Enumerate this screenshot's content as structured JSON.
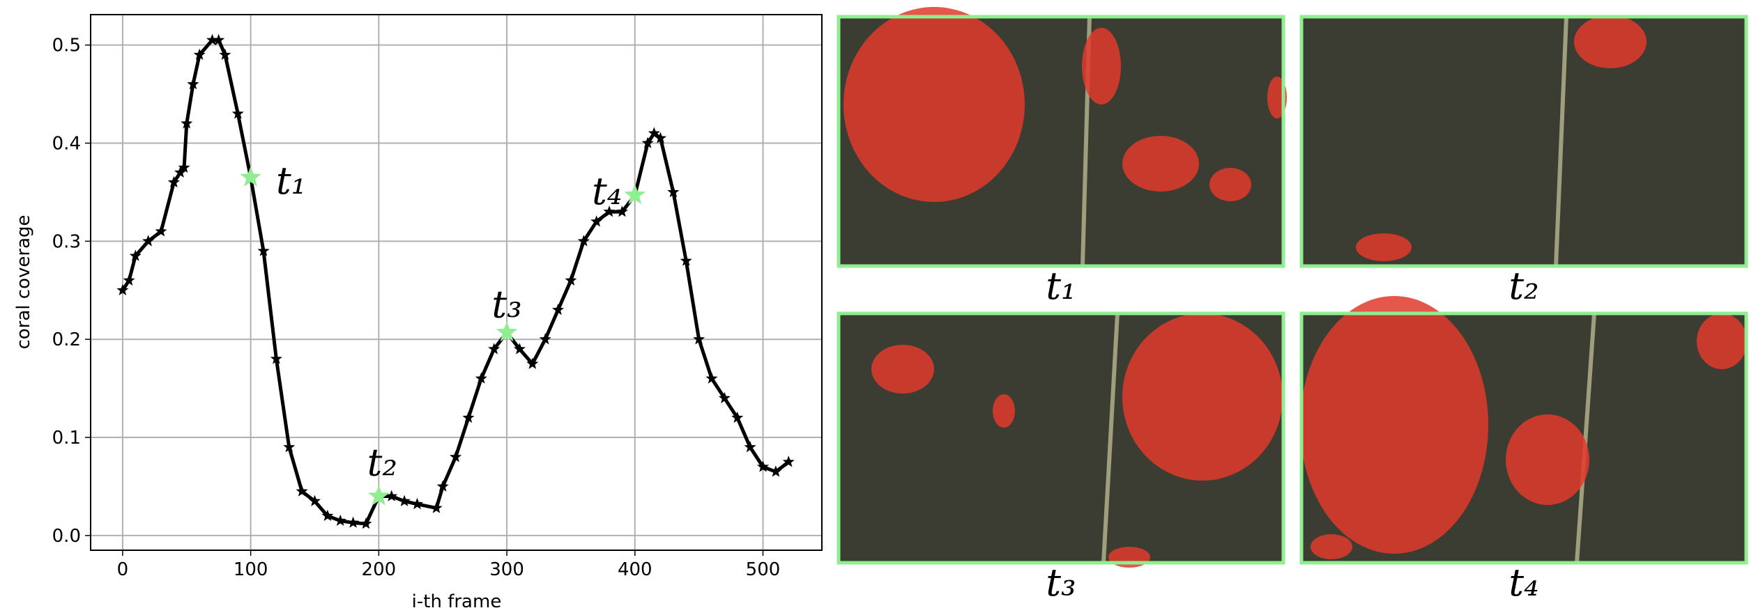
{
  "chart_data": {
    "type": "line",
    "x_label": "i-th frame",
    "y_label": "coral coverage",
    "xlim": [
      -25,
      546
    ],
    "ylim": [
      -0.015,
      0.531
    ],
    "xticks": [
      0,
      100,
      200,
      300,
      400,
      500
    ],
    "yticks": [
      {
        "value": 0,
        "label": "0.0"
      },
      0.1,
      0.2,
      0.3,
      0.4,
      0.5
    ],
    "grid": true,
    "series": [
      {
        "color": "#000000",
        "x": [
          0,
          5,
          10,
          20,
          30,
          40,
          45,
          48,
          50,
          55,
          60,
          70,
          75,
          80,
          90,
          100,
          110,
          120,
          130,
          140,
          150,
          160,
          170,
          180,
          190,
          200,
          210,
          220,
          230,
          245,
          250,
          260,
          270,
          280,
          290,
          300,
          310,
          320,
          330,
          340,
          350,
          360,
          370,
          380,
          390,
          400,
          410,
          415,
          420,
          430,
          440,
          450,
          460,
          470,
          480,
          490,
          500,
          510,
          520
        ],
        "values": [
          0.25,
          0.26,
          0.285,
          0.3,
          0.31,
          0.36,
          0.37,
          0.375,
          0.42,
          0.46,
          0.49,
          0.505,
          0.505,
          0.49,
          0.43,
          0.365,
          0.29,
          0.18,
          0.09,
          0.045,
          0.035,
          0.02,
          0.015,
          0.013,
          0.012,
          0.04,
          0.04,
          0.035,
          0.032,
          0.028,
          0.05,
          0.08,
          0.12,
          0.16,
          0.19,
          0.207,
          0.19,
          0.175,
          0.2,
          0.23,
          0.26,
          0.3,
          0.32,
          0.33,
          0.33,
          0.347,
          0.4,
          0.41,
          0.405,
          0.35,
          0.28,
          0.2,
          0.16,
          0.14,
          0.12,
          0.09,
          0.07,
          0.065,
          0.075
        ]
      }
    ],
    "highlights": {
      "color": "#90ee90",
      "x": [
        100,
        200,
        300,
        400
      ],
      "values": [
        0.365,
        0.04,
        0.207,
        0.347
      ],
      "labels": [
        "t₁",
        "t₂",
        "t₃",
        "t₄"
      ]
    }
  },
  "frames": [
    {
      "label": "t₁"
    },
    {
      "label": "t₂"
    },
    {
      "label": "t₃"
    },
    {
      "label": "t₄"
    }
  ]
}
